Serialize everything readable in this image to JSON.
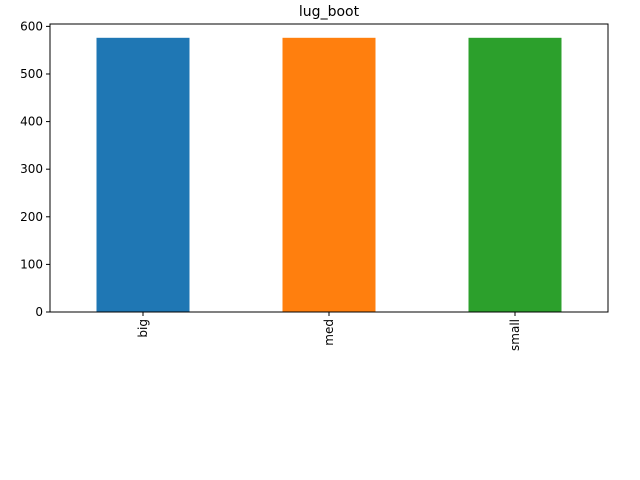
{
  "chart_data": {
    "type": "bar",
    "title": "lug_boot",
    "xlabel": "",
    "ylabel": "",
    "categories": [
      "big",
      "med",
      "small"
    ],
    "values": [
      576,
      576,
      576
    ],
    "colors": [
      "#1f77b4",
      "#ff7f0e",
      "#2ca02c"
    ],
    "ylim": [
      0,
      605
    ],
    "yticks": [
      0,
      100,
      200,
      300,
      400,
      500,
      600
    ],
    "grid": false,
    "legend": "none"
  }
}
